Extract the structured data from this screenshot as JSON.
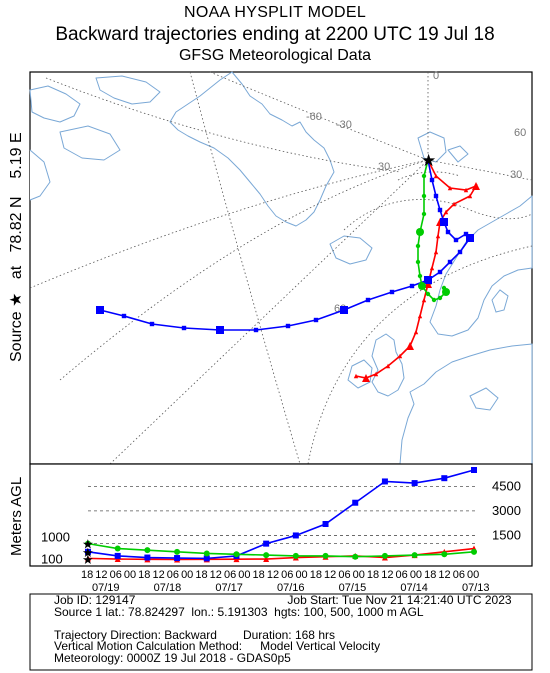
{
  "header": {
    "line1": "NOAA HYSPLIT MODEL",
    "line2": "Backward trajectories ending at 2200 UTC 19 Jul 18",
    "line3": "GFSG Meteorological Data"
  },
  "map": {
    "side_label": "Source ★ at 78.82 N 5.19 E",
    "side_label_parts": [
      "Source",
      "★",
      "at",
      "78.82 N",
      "5.19 E"
    ],
    "grid_labels": [
      "-60",
      "-30",
      "0",
      "30",
      "60",
      "30",
      "60"
    ],
    "source_marker": "★",
    "colors": {
      "land": "#ffffff",
      "coast": "#7aa8d6",
      "grid": "#555555",
      "series_100": "#ff0000",
      "series_500": "#0000ff",
      "series_1000": "#00cc00"
    }
  },
  "height_panel": {
    "ylabel": "Meters AGL",
    "levels_left": [
      "1000",
      "100"
    ],
    "levels_right": [
      "4500",
      "3000",
      "1500"
    ],
    "time_ticks": [
      "18",
      "12",
      "06",
      "00",
      "18",
      "12",
      "06",
      "00",
      "18",
      "12",
      "06",
      "00",
      "18",
      "12",
      "06",
      "00",
      "18",
      "12",
      "06",
      "00",
      "18",
      "12",
      "06",
      "00",
      "18",
      "12",
      "06",
      "00"
    ],
    "date_labels": [
      "07/19",
      "07/18",
      "07/17",
      "07/16",
      "07/15",
      "07/14",
      "07/13"
    ]
  },
  "chart_data": {
    "type": "line",
    "xlabel": "",
    "ylabel": "Meters AGL",
    "x": [
      "07/19 18",
      "07/19 06",
      "07/18 18",
      "07/18 06",
      "07/17 18",
      "07/17 06",
      "07/16 18",
      "07/16 06",
      "07/15 18",
      "07/15 06",
      "07/14 18",
      "07/14 06",
      "07/13 18",
      "07/13 06"
    ],
    "ylim": [
      0,
      5500
    ],
    "series": [
      {
        "name": "",
        "color": "#ff0000",
        "values": [
          100,
          60,
          40,
          30,
          40,
          50,
          60,
          150,
          200,
          250,
          150,
          300,
          500,
          700
        ]
      },
      {
        "name": "",
        "color": "#0000ff",
        "values": [
          500,
          250,
          150,
          120,
          100,
          250,
          1000,
          1500,
          2200,
          3500,
          4800,
          4700,
          5000,
          5500
        ]
      },
      {
        "name": "",
        "color": "#00cc00",
        "values": [
          1000,
          700,
          600,
          500,
          400,
          350,
          300,
          250,
          250,
          200,
          250,
          300,
          350,
          500
        ]
      }
    ]
  },
  "footer": {
    "job_id": "Job ID: 129147",
    "job_start": "Job Start: Tue Nov 21 14:21:40 UTC 2023",
    "source_line": "Source 1 lat.: 78.824297  lon.: 5.191303  hgts: 100, 500, 1000 m AGL",
    "direction": "Trajectory Direction: Backward",
    "duration": "Duration: 168 hrs",
    "vertical_method": "Vertical Motion Calculation Method:",
    "vertical_value": "Model Vertical Velocity",
    "meteorology": "Meteorology: 0000Z 19 Jul 2018 - GDAS0p5"
  }
}
